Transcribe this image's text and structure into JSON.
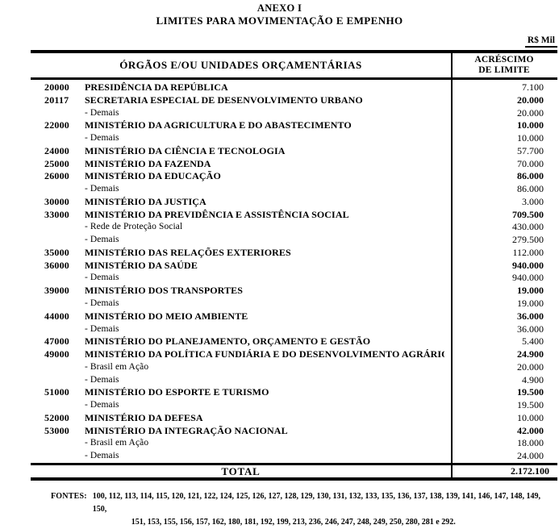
{
  "page": {
    "title1": "ANEXO I",
    "title2": "LIMITES PARA MOVIMENTAÇÃO E EMPENHO",
    "currency_note": "R$ Mil"
  },
  "table": {
    "col1_header": "ÓRGÃOS E/OU UNIDADES ORÇAMENTÁRIAS",
    "col2_header_line1": "ACRÉSCIMO",
    "col2_header_line2": "DE LIMITE",
    "rows": [
      {
        "code": "20000",
        "name": "PRESIDÊNCIA DA REPÚBLICA",
        "value": "7.100",
        "bold": false,
        "sub": false
      },
      {
        "code": "20117",
        "name": "SECRETARIA ESPECIAL DE DESENVOLVIMENTO URBANO",
        "value": "20.000",
        "bold": true,
        "sub": false
      },
      {
        "code": "",
        "name": "- Demais",
        "value": "20.000",
        "bold": false,
        "sub": true
      },
      {
        "code": "22000",
        "name": "MINISTÉRIO DA AGRICULTURA E DO ABASTECIMENTO",
        "value": "10.000",
        "bold": true,
        "sub": false
      },
      {
        "code": "",
        "name": "- Demais",
        "value": "10.000",
        "bold": false,
        "sub": true
      },
      {
        "code": "24000",
        "name": "MINISTÉRIO DA CIÊNCIA E  TECNOLOGIA",
        "value": "57.700",
        "bold": false,
        "sub": false
      },
      {
        "code": "25000",
        "name": "MINISTÉRIO DA FAZENDA",
        "value": "70.000",
        "bold": false,
        "sub": false
      },
      {
        "code": "26000",
        "name": "MINISTÉRIO DA EDUCAÇÃO",
        "value": "86.000",
        "bold": true,
        "sub": false
      },
      {
        "code": "",
        "name": "- Demais",
        "value": "86.000",
        "bold": false,
        "sub": true
      },
      {
        "code": "30000",
        "name": "MINISTÉRIO DA JUSTIÇA",
        "value": "3.000",
        "bold": false,
        "sub": false
      },
      {
        "code": "33000",
        "name": "MINISTÉRIO DA PREVIDÊNCIA E ASSISTÊNCIA SOCIAL",
        "value": "709.500",
        "bold": true,
        "sub": false
      },
      {
        "code": "",
        "name": "- Rede de Proteção Social",
        "value": "430.000",
        "bold": false,
        "sub": true
      },
      {
        "code": "",
        "name": "- Demais",
        "value": "279.500",
        "bold": false,
        "sub": true
      },
      {
        "code": "35000",
        "name": "MINISTÉRIO DAS RELAÇÕES EXTERIORES",
        "value": "112.000",
        "bold": false,
        "sub": false
      },
      {
        "code": "36000",
        "name": "MINISTÉRIO DA SAÚDE",
        "value": "940.000",
        "bold": true,
        "sub": false
      },
      {
        "code": "",
        "name": "- Demais",
        "value": "940.000",
        "bold": false,
        "sub": true
      },
      {
        "code": "39000",
        "name": "MINISTÉRIO DOS TRANSPORTES",
        "value": "19.000",
        "bold": true,
        "sub": false
      },
      {
        "code": "",
        "name": "- Demais",
        "value": "19.000",
        "bold": false,
        "sub": true
      },
      {
        "code": "44000",
        "name": "MINISTÉRIO DO MEIO AMBIENTE",
        "value": "36.000",
        "bold": true,
        "sub": false
      },
      {
        "code": "",
        "name": "- Demais",
        "value": "36.000",
        "bold": false,
        "sub": true
      },
      {
        "code": "47000",
        "name": "MINISTÉRIO DO PLANEJAMENTO, ORÇAMENTO E GESTÃO",
        "value": "5.400",
        "bold": false,
        "sub": false
      },
      {
        "code": "49000",
        "name": "MINISTÉRIO DA POLÍTICA FUNDIÁRIA E DO DESENVOLVIMENTO AGRÁRIO",
        "value": "24.900",
        "bold": true,
        "sub": false
      },
      {
        "code": "",
        "name": "- Brasil em Ação",
        "value": "20.000",
        "bold": false,
        "sub": true
      },
      {
        "code": "",
        "name": "- Demais",
        "value": "4.900",
        "bold": false,
        "sub": true
      },
      {
        "code": "51000",
        "name": "MINISTÉRIO DO ESPORTE E TURISMO",
        "value": "19.500",
        "bold": true,
        "sub": false
      },
      {
        "code": "",
        "name": "- Demais",
        "value": "19.500",
        "bold": false,
        "sub": true
      },
      {
        "code": "52000",
        "name": "MINISTÉRIO DA DEFESA",
        "value": "10.000",
        "bold": false,
        "sub": false
      },
      {
        "code": "53000",
        "name": "MINISTÉRIO DA INTEGRAÇÃO NACIONAL",
        "value": "42.000",
        "bold": true,
        "sub": false
      },
      {
        "code": "",
        "name": "- Brasil em Ação",
        "value": "18.000",
        "bold": false,
        "sub": true
      },
      {
        "code": "",
        "name": "- Demais",
        "value": "24.000",
        "bold": false,
        "sub": true
      }
    ],
    "total_label": "TOTAL",
    "total_value": "2.172.100"
  },
  "footer": {
    "label": "FONTES:",
    "line1": "100, 112, 113, 114, 115, 120, 121, 122, 124, 125, 126, 127, 128, 129, 130, 131, 132, 133, 135, 136, 137, 138, 139, 141, 146, 147, 148, 149, 150,",
    "line2": "151, 153, 155, 156, 157, 162, 180, 181, 192, 199, 213, 236, 246, 247, 248, 249, 250, 280, 281 e 292."
  }
}
